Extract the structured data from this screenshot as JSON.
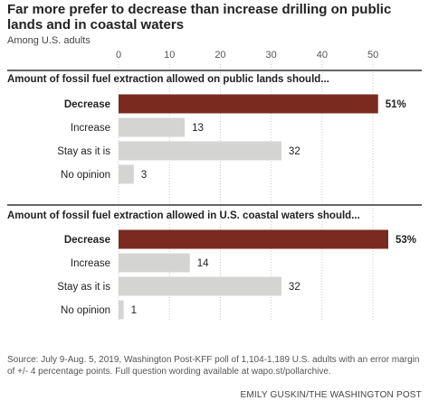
{
  "title": "Far more prefer to decrease than increase drilling on public lands and in coastal waters",
  "subtitle": "Among U.S. adults",
  "source": "Source: July 9-Aug. 5, 2019, Washington Post-KFF poll of 1,104-1,189 U.S. adults with an error margin of +/- 4 percentage points. Full question wording available at wapo.st/pollarchive.",
  "credit": "EMILY GUSKIN/THE WASHINGTON POST",
  "colors": {
    "highlight": "#7b2a20",
    "other": "#d4d4d2",
    "grid": "#c9c9c9"
  },
  "chart_data": {
    "type": "bar",
    "orientation": "horizontal",
    "xlim": [
      0,
      53
    ],
    "x_ticks": [
      0,
      10,
      20,
      30,
      40,
      50
    ],
    "grid": true,
    "groups": [
      {
        "title": "Amount of fossil fuel extraction allowed on public lands should...",
        "categories": [
          "Decrease",
          "Increase",
          "Stay as it is",
          "No opinion"
        ],
        "values": [
          51,
          13,
          32,
          3
        ],
        "labels": [
          "51%",
          "13",
          "32",
          "3"
        ]
      },
      {
        "title": "Amount of fossil fuel extraction allowed in U.S. coastal waters should...",
        "categories": [
          "Decrease",
          "Increase",
          "Stay as it is",
          "No opinion"
        ],
        "values": [
          53,
          14,
          32,
          1
        ],
        "labels": [
          "53%",
          "14",
          "32",
          "1"
        ]
      }
    ]
  }
}
